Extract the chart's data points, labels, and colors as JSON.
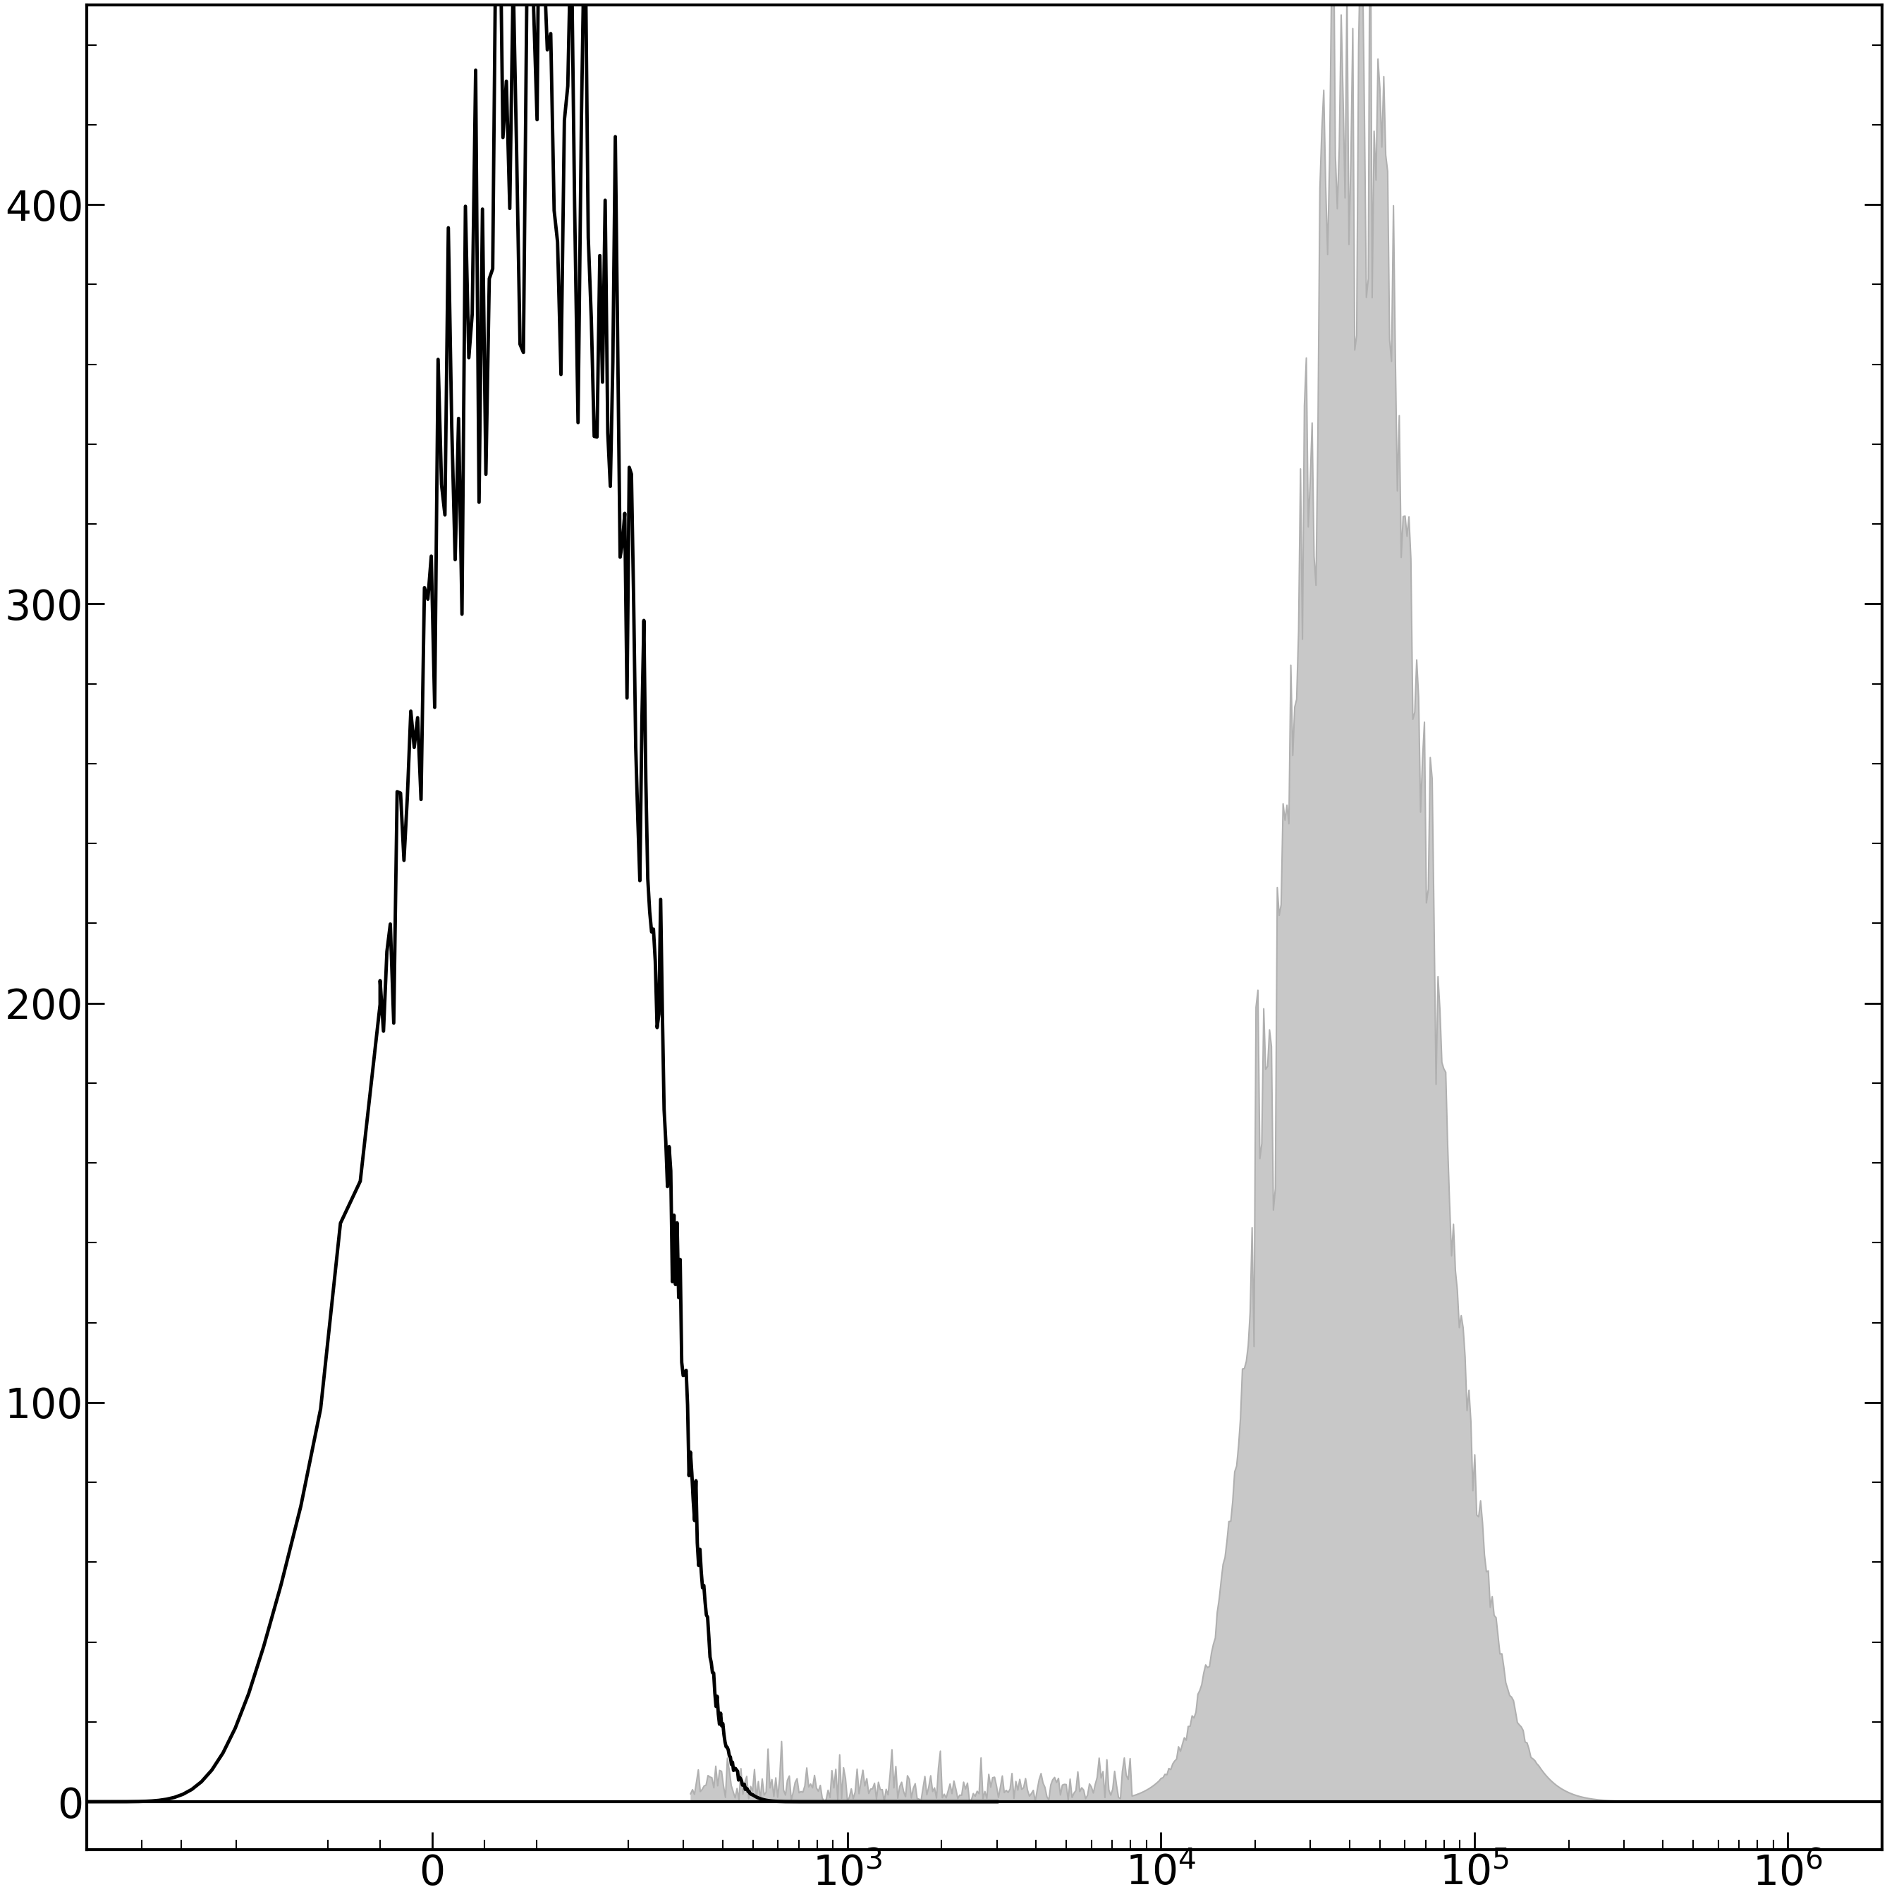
{
  "title": "",
  "ylim": [
    -12,
    450
  ],
  "yticks": [
    0,
    100,
    200,
    300,
    400
  ],
  "gray_fill_color": "#c8c8c8",
  "gray_edge_color": "#b0b0b0",
  "black_edge_color": "#000000",
  "linewidth_black": 3.5,
  "linewidth_gray": 1.5,
  "background_color": "#ffffff",
  "axis_linewidth": 3.0,
  "tick_linewidth": 2.0,
  "fontsize_ticks": 42,
  "linthresh": 150,
  "linscale": 0.45
}
